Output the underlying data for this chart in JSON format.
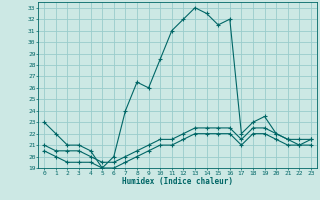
{
  "xlabel": "Humidex (Indice chaleur)",
  "bg_color": "#cce8e4",
  "grid_color": "#99cccc",
  "line_color": "#006666",
  "xlim": [
    -0.5,
    23.5
  ],
  "ylim": [
    19,
    33.5
  ],
  "yticks": [
    19,
    20,
    21,
    22,
    23,
    24,
    25,
    26,
    27,
    28,
    29,
    30,
    31,
    32,
    33
  ],
  "xticks": [
    0,
    1,
    2,
    3,
    4,
    5,
    6,
    7,
    8,
    9,
    10,
    11,
    12,
    13,
    14,
    15,
    16,
    17,
    18,
    19,
    20,
    21,
    22,
    23
  ],
  "series1_x": [
    0,
    1,
    2,
    3,
    4,
    5,
    6,
    7,
    8,
    9,
    10,
    11,
    12,
    13,
    14,
    15,
    16,
    17,
    18,
    19,
    20,
    21,
    22,
    23
  ],
  "series1_y": [
    23.0,
    22.0,
    21.0,
    21.0,
    20.5,
    19.0,
    20.0,
    24.0,
    26.5,
    26.0,
    28.5,
    31.0,
    32.0,
    33.0,
    32.5,
    31.5,
    32.0,
    22.0,
    23.0,
    23.5,
    22.0,
    21.5,
    21.5,
    21.5
  ],
  "series2_x": [
    0,
    1,
    2,
    3,
    4,
    5,
    6,
    7,
    8,
    9,
    10,
    11,
    12,
    13,
    14,
    15,
    16,
    17,
    18,
    19,
    20,
    21,
    22,
    23
  ],
  "series2_y": [
    21.0,
    20.5,
    20.5,
    20.5,
    20.0,
    19.5,
    19.5,
    20.0,
    20.5,
    21.0,
    21.5,
    21.5,
    22.0,
    22.5,
    22.5,
    22.5,
    22.5,
    21.5,
    22.5,
    22.5,
    22.0,
    21.5,
    21.0,
    21.5
  ],
  "series3_x": [
    0,
    1,
    2,
    3,
    4,
    5,
    6,
    7,
    8,
    9,
    10,
    11,
    12,
    13,
    14,
    15,
    16,
    17,
    18,
    19,
    20,
    21,
    22,
    23
  ],
  "series3_y": [
    20.5,
    20.0,
    19.5,
    19.5,
    19.5,
    19.0,
    19.0,
    19.5,
    20.0,
    20.5,
    21.0,
    21.0,
    21.5,
    22.0,
    22.0,
    22.0,
    22.0,
    21.0,
    22.0,
    22.0,
    21.5,
    21.0,
    21.0,
    21.0
  ],
  "tick_fontsize": 4.5,
  "xlabel_fontsize": 5.5
}
